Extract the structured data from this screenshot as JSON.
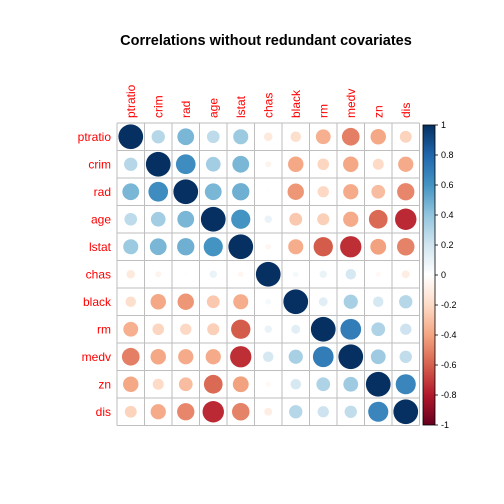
{
  "chart_data": {
    "type": "heatmap",
    "title": "Correlations without redundant covariates",
    "variables": [
      "ptratio",
      "crim",
      "rad",
      "age",
      "lstat",
      "chas",
      "black",
      "rm",
      "medv",
      "zn",
      "dis"
    ],
    "matrix": [
      [
        1.0,
        0.29,
        0.46,
        0.26,
        0.37,
        -0.12,
        -0.18,
        -0.36,
        -0.51,
        -0.39,
        -0.23
      ],
      [
        0.29,
        1.0,
        0.63,
        0.35,
        0.46,
        -0.06,
        -0.39,
        -0.22,
        -0.39,
        -0.2,
        -0.38
      ],
      [
        0.46,
        0.63,
        1.0,
        0.46,
        0.49,
        -0.01,
        -0.44,
        -0.21,
        -0.38,
        -0.31,
        -0.49
      ],
      [
        0.26,
        0.35,
        0.46,
        1.0,
        0.6,
        0.09,
        -0.27,
        -0.24,
        -0.38,
        -0.57,
        -0.75
      ],
      [
        0.37,
        0.46,
        0.49,
        0.6,
        1.0,
        -0.05,
        -0.37,
        -0.61,
        -0.74,
        -0.41,
        -0.5
      ],
      [
        -0.12,
        -0.06,
        -0.01,
        0.09,
        -0.05,
        1.0,
        0.05,
        0.09,
        0.18,
        -0.04,
        -0.1
      ],
      [
        -0.18,
        -0.39,
        -0.44,
        -0.27,
        -0.37,
        0.05,
        1.0,
        0.13,
        0.33,
        0.18,
        0.29
      ],
      [
        -0.36,
        -0.22,
        -0.21,
        -0.24,
        -0.61,
        0.09,
        0.13,
        1.0,
        0.7,
        0.31,
        0.21
      ],
      [
        -0.51,
        -0.39,
        -0.38,
        -0.38,
        -0.74,
        0.18,
        0.33,
        0.7,
        1.0,
        0.36,
        0.25
      ],
      [
        -0.39,
        -0.2,
        -0.31,
        -0.57,
        -0.41,
        -0.04,
        0.18,
        0.31,
        0.36,
        1.0,
        0.66
      ],
      [
        -0.23,
        -0.38,
        -0.49,
        -0.75,
        -0.5,
        -0.1,
        0.29,
        0.21,
        0.25,
        0.66,
        1.0
      ]
    ],
    "colorbar": {
      "ticks": [
        "1",
        "0.8",
        "0.6",
        "0.4",
        "0.2",
        "0",
        "-0.2",
        "-0.4",
        "-0.6",
        "-0.8",
        "-1"
      ],
      "range": [
        -1,
        1
      ],
      "colors": [
        "#67001F",
        "#B2182B",
        "#D6604D",
        "#F4A582",
        "#FDDBC7",
        "#FFFFFF",
        "#D1E5F0",
        "#92C5DE",
        "#4393C3",
        "#2166AC",
        "#053061"
      ]
    },
    "label_color": "#FF0000",
    "grid_color": "#BEBEBE"
  }
}
